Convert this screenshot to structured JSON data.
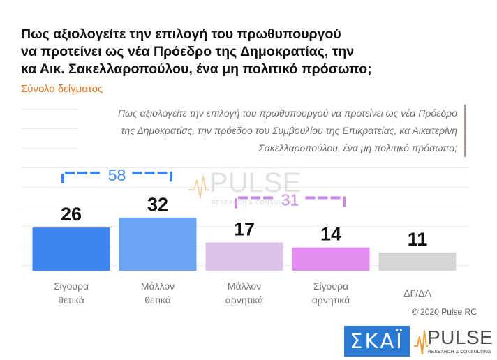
{
  "chart_data": {
    "type": "bar",
    "title": "Πως αξιολογείτε την επιλογή του πρωθυπουργού\nνα προτείνει ως νέα Πρόεδρο της Δημοκρατίας, την\nκα Αικ. Σακελλαροπούλου, ένα μη πολιτικό πρόσωπο;",
    "subtitle": "Σύνολο δείγματος",
    "question": "Πως αξιολογείτε την επιλογή του πρωθυπουργού να προτείνει ως νέα Πρόεδρο\nτης Δημοκρατίας, την πρόεδρο του Συμβουλίου της Επικρατείας, κα Αικατερίνη\nΣακελλαροπούλου, ένα μη πολιτικό πρόσωπο;",
    "categories": [
      "Σίγουρα θετικά",
      "Μάλλον θετικά",
      "Μάλλον αρνητικά",
      "Σίγουρα αρνητικά",
      "ΔΓ/ΔΑ"
    ],
    "values": [
      26,
      32,
      17,
      14,
      11
    ],
    "colors": [
      "#3d85f0",
      "#6aa4f2",
      "#dcc3e8",
      "#e28cf2",
      "#d6d6d6"
    ],
    "group_totals": [
      {
        "label": "58",
        "categories": [
          "Σίγουρα θετικά",
          "Μάλλον θετικά"
        ],
        "color": "#3d85f0"
      },
      {
        "label": "31",
        "categories": [
          "Μάλλον αρνητικά",
          "Σίγουρα αρνητικά"
        ],
        "color": "#c98ae6"
      }
    ],
    "xlabel": "",
    "ylabel": "",
    "ylim": [
      0,
      100
    ],
    "grid": true
  },
  "credit": "© 2020 Pulse RC",
  "watermark": {
    "name": "PULSE",
    "tagline": "RESEARCH & CONSULTING"
  },
  "logos": {
    "skai": "ΣΚΑΪ",
    "pulse": "PULSE",
    "pulse_tagline": "RESEARCH & CONSULTING"
  },
  "colors": {
    "title": "#111111",
    "subtitle": "#e8721c",
    "question_text": "#6f6f6f",
    "category_label": "#777777",
    "skai_blue": "#2b7ad4",
    "pulse_orange": "#f2a23a"
  }
}
